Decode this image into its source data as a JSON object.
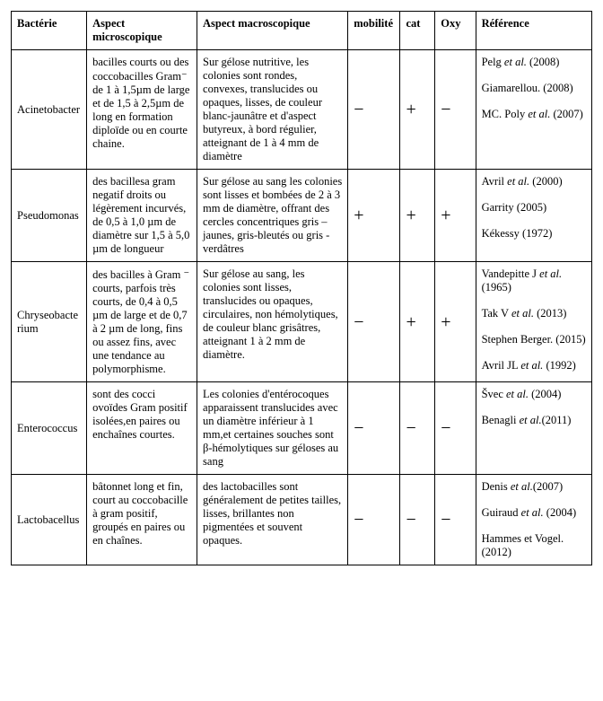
{
  "headers": {
    "bacterie": "Bactérie",
    "micro": "Aspect microscopique",
    "macro": "Aspect macroscopique",
    "mobilite": "mobilité",
    "cat": "cat",
    "oxy": "Oxy",
    "ref": "Référence"
  },
  "rows": [
    {
      "bacterie": "Acinetobacter",
      "micro": "bacilles courts ou des coccobacilles Gram⁻ de 1 à 1,5µm de large et de 1,5 à 2,5µm de long en formation diploïde ou en courte chaine.",
      "macro": "Sur gélose nutritive, les colonies sont rondes, convexes, translucides ou opaques, lisses, de couleur blanc-jaunâtre et d'aspect butyreux, à bord régulier, atteignant de 1 à 4 mm de diamètre",
      "mob": "−",
      "cat": "+",
      "oxy": "−",
      "refs": [
        "Pelg et al. (2008)",
        "Giamarellou. (2008)",
        "MC. Poly et al. (2007)"
      ]
    },
    {
      "bacterie": "Pseudomonas",
      "micro": "des bacillesa gram negatif droits ou légèrement incurvés, de 0,5 à 1,0 µm de diamètre sur 1,5 à 5,0 µm de longueur",
      "macro": "Sur gélose au sang les colonies sont lisses et bombées de 2 à 3 mm de diamètre, offrant des cercles concentriques gris –jaunes, gris-bleutés ou gris - verdâtres",
      "mob": "+",
      "cat": "+",
      "oxy": "+",
      "refs": [
        "Avril et al. (2000)",
        "Garrity (2005)",
        "Kékessy (1972)"
      ]
    },
    {
      "bacterie": "Chryseobacterium",
      "micro": "des bacilles à Gram ⁻ courts, parfois très courts, de 0,4 à 0,5 µm de large et de 0,7 à 2 µm de long, fins ou assez fins, avec une tendance au polymorphisme.",
      "macro": " Sur gélose au sang, les colonies sont lisses, translucides ou opaques, circulaires, non hémolytiques, de couleur blanc grisâtres, atteignant 1 à 2 mm de diamètre.",
      "mob": "−",
      "cat": "+",
      "oxy": "+",
      "refs": [
        "Vandepitte J et al. (1965)",
        "Tak V et al. (2013)",
        "Stephen Berger. (2015)",
        "Avril JL et al. (1992)"
      ]
    },
    {
      "bacterie": "Enterococcus",
      "micro": " sont des cocci ovoïdes Gram positif isolées,en paires ou enchaînes courtes.",
      "macro": "Les colonies d'entérocoques apparaissent  translucides avec un diamètre inférieur à 1 mm,et certaines souches sont β-hémolytiques sur géloses au sang",
      "mob": "−",
      "cat": "−",
      "oxy": "−",
      "refs": [
        "Švec et al. (2004)",
        "Benagli et al.(2011)"
      ]
    },
    {
      "bacterie": "Lactobacellus",
      "micro": "bâtonnet long et fin, court au coccobacille à gram positif, groupés en paires ou en chaînes.",
      "macro": "des lactobacilles sont généralement de petites tailles, lisses, brillantes non pigmentées et souvent opaques.",
      "mob": "−",
      "cat": "−",
      "oxy": "−",
      "refs": [
        "Denis et al.(2007)",
        "Guiraud et al. (2004)",
        "Hammes et Vogel. (2012)"
      ]
    }
  ]
}
